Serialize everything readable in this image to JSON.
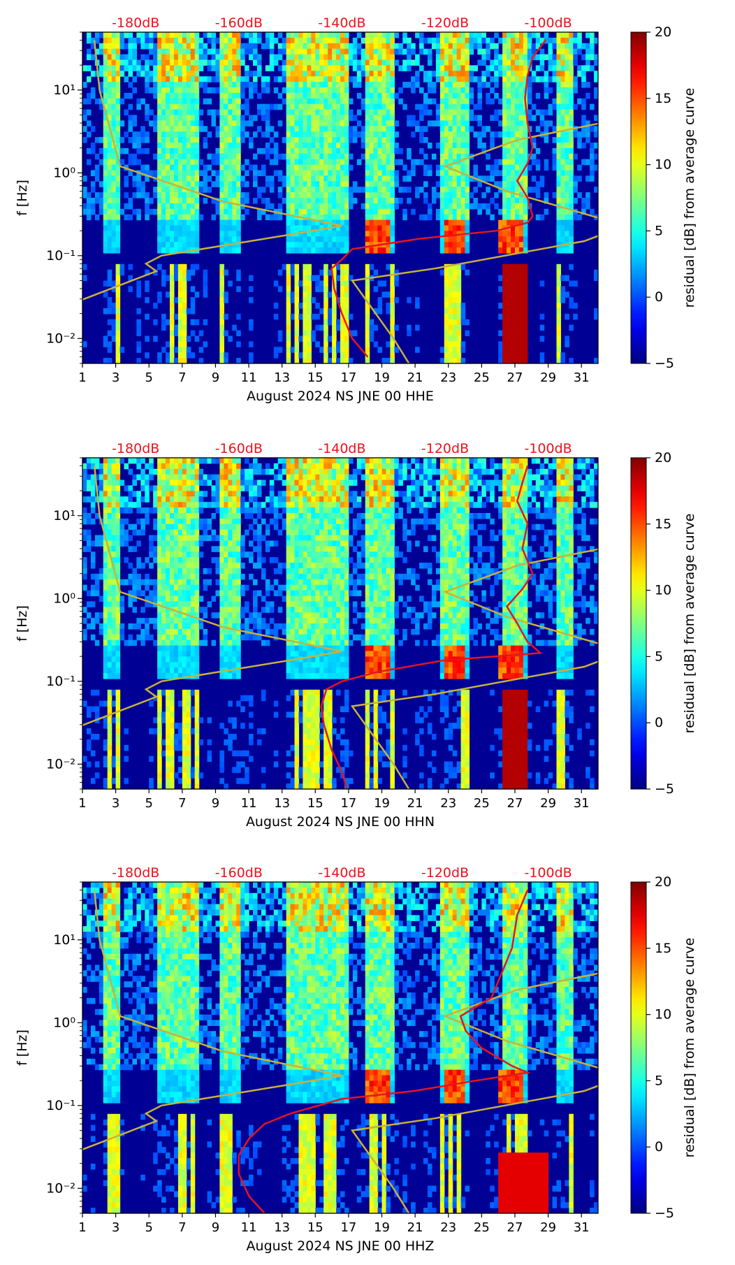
{
  "colors": {
    "db_label": "#e8141c",
    "psd_line": "#e8141c",
    "model_line": "#c8b23a"
  },
  "colorbar": {
    "label": "residual [dB] from average curve",
    "min": -5,
    "max": 20,
    "ticks": [
      "20",
      "15",
      "10",
      "5",
      "0",
      "−5"
    ],
    "colormap": "jet"
  },
  "db_scale": [
    "-180dB",
    "-160dB",
    "-140dB",
    "-120dB",
    "-100dB"
  ],
  "chart_data": [
    {
      "type": "heatmap",
      "xlabel": "August 2024 NS JNE 00 HHE",
      "ylabel": "f [Hz]",
      "x_ticks": [
        "1",
        "3",
        "5",
        "7",
        "9",
        "11",
        "13",
        "15",
        "17",
        "19",
        "21",
        "23",
        "25",
        "27",
        "29",
        "31"
      ],
      "xlim": [
        1,
        32
      ],
      "y_scale": "log",
      "ylim": [
        0.005,
        50
      ],
      "y_ticks": [
        "10¹",
        "10⁰",
        "10⁻¹",
        "10⁻²"
      ],
      "db_axis_ticks": [
        -180,
        -160,
        -140,
        -120,
        -100
      ],
      "series": [
        {
          "values": [
            [
              -100.5,
              40
            ],
            [
              -103,
              25
            ],
            [
              -104,
              15
            ],
            [
              -104.5,
              8
            ],
            [
              -104,
              4
            ],
            [
              -103,
              2
            ],
            [
              -104,
              1.3
            ],
            [
              -106,
              0.8
            ],
            [
              -104,
              0.5
            ],
            [
              -103,
              0.3
            ],
            [
              -104,
              0.25
            ],
            [
              -110,
              0.2
            ],
            [
              -125,
              0.16
            ],
            [
              -138,
              0.12
            ],
            [
              -140,
              0.09
            ],
            [
              -142,
              0.07
            ],
            [
              -141.5,
              0.04
            ],
            [
              -140,
              0.02
            ],
            [
              -138,
              0.01
            ],
            [
              -135,
              0.006
            ]
          ]
        }
      ]
    },
    {
      "type": "heatmap",
      "xlabel": "August 2024 NS JNE 00 HHN",
      "ylabel": "f [Hz]",
      "x_ticks": [
        "1",
        "3",
        "5",
        "7",
        "9",
        "11",
        "13",
        "15",
        "17",
        "19",
        "21",
        "23",
        "25",
        "27",
        "29",
        "31"
      ],
      "xlim": [
        1,
        32
      ],
      "y_scale": "log",
      "ylim": [
        0.005,
        50
      ],
      "y_ticks": [
        "10¹",
        "10⁰",
        "10⁻¹",
        "10⁻²"
      ],
      "db_axis_ticks": [
        -180,
        -160,
        -140,
        -120,
        -100
      ],
      "series": [
        {
          "values": [
            [
              -104,
              40
            ],
            [
              -105,
              25
            ],
            [
              -106,
              15
            ],
            [
              -104,
              8
            ],
            [
              -105,
              4
            ],
            [
              -103,
              2
            ],
            [
              -105,
              1.3
            ],
            [
              -108,
              0.8
            ],
            [
              -106,
              0.5
            ],
            [
              -104,
              0.3
            ],
            [
              -101.5,
              0.22
            ],
            [
              -120,
              0.18
            ],
            [
              -133,
              0.13
            ],
            [
              -140,
              0.1
            ],
            [
              -143,
              0.08
            ],
            [
              -144,
              0.05
            ],
            [
              -143.5,
              0.03
            ],
            [
              -142,
              0.015
            ],
            [
              -140,
              0.008
            ],
            [
              -139,
              0.005
            ]
          ]
        }
      ]
    },
    {
      "type": "heatmap",
      "xlabel": "August 2024 NS JNE 00 HHZ",
      "ylabel": "f [Hz]",
      "x_ticks": [
        "1",
        "3",
        "5",
        "7",
        "9",
        "11",
        "13",
        "15",
        "17",
        "19",
        "21",
        "23",
        "25",
        "27",
        "29",
        "31"
      ],
      "xlim": [
        1,
        32
      ],
      "y_scale": "log",
      "ylim": [
        0.005,
        50
      ],
      "y_ticks": [
        "10¹",
        "10⁰",
        "10⁻¹",
        "10⁻²"
      ],
      "db_axis_ticks": [
        -180,
        -160,
        -140,
        -120,
        -100
      ],
      "series": [
        {
          "values": [
            [
              -104,
              40
            ],
            [
              -106,
              20
            ],
            [
              -107,
              8
            ],
            [
              -109,
              4
            ],
            [
              -111,
              2
            ],
            [
              -117,
              1.2
            ],
            [
              -116,
              0.8
            ],
            [
              -113,
              0.5
            ],
            [
              -107,
              0.3
            ],
            [
              -104,
              0.25
            ],
            [
              -114,
              0.2
            ],
            [
              -126,
              0.15
            ],
            [
              -140,
              0.12
            ],
            [
              -150,
              0.08
            ],
            [
              -155,
              0.06
            ],
            [
              -158,
              0.04
            ],
            [
              -160,
              0.025
            ],
            [
              -160,
              0.015
            ],
            [
              -158,
              0.008
            ],
            [
              -155,
              0.005
            ]
          ]
        }
      ]
    }
  ]
}
